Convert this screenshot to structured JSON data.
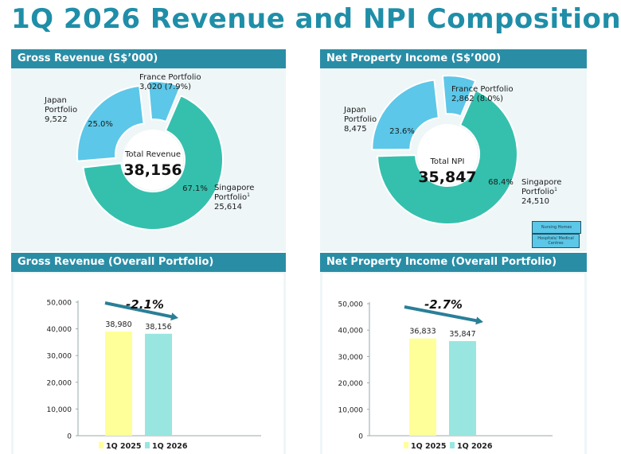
{
  "title": "1Q 2026 Revenue and NPI Composition",
  "panels": {
    "gross_revenue": "Gross Revenue (S$’000)",
    "npi": "Net Property Income (S$’000)",
    "gross_revenue_overall": "Gross Revenue (Overall Portfolio)",
    "npi_overall": "Net Property Income (Overall Portfolio)"
  },
  "legend_boxes": {
    "nursing_homes": "Nursing Homes",
    "hospitals": "Hospitals/ Medical Centres"
  },
  "colors": {
    "header": "#2a8da6",
    "title": "#1f8ea8",
    "singapore": "#35c0ae",
    "japan": "#5cc7e8",
    "france": "#5cc7e8",
    "bar_1q2025": "#ffff99",
    "bar_1q2026": "#99e6e0",
    "arrow": "#2a7f97"
  },
  "chart_data": [
    {
      "type": "pie",
      "donut": true,
      "center_label": "Total Revenue",
      "center_value": "38,156",
      "slices": [
        {
          "name_lines": [
            "Singapore",
            "Portfolio"
          ],
          "superscript": "1",
          "value": 25614,
          "value_label": "25,614",
          "percent_label": "67.1%"
        },
        {
          "name_lines": [
            "Japan",
            "Portfolio"
          ],
          "value": 9522,
          "value_label": "9,522",
          "percent_label": "25.0%"
        },
        {
          "name_lines": [
            "France Portfolio"
          ],
          "value": 3020,
          "value_label": "3,020 (7.9%)"
        }
      ]
    },
    {
      "type": "pie",
      "donut": true,
      "center_label": "Total NPI",
      "center_value": "35,847",
      "slices": [
        {
          "name_lines": [
            "Singapore",
            "Portfolio"
          ],
          "superscript": "1",
          "value": 24510,
          "value_label": "24,510",
          "percent_label": "68.4%"
        },
        {
          "name_lines": [
            "Japan",
            "Portfolio"
          ],
          "value": 8475,
          "value_label": "8,475",
          "percent_label": "23.6%"
        },
        {
          "name_lines": [
            "France Portfolio"
          ],
          "value": 2862,
          "value_label": "2,862 (8.0%)"
        }
      ]
    },
    {
      "type": "bar",
      "categories": [
        "1Q 2025",
        "1Q 2026"
      ],
      "values": [
        38980,
        38156
      ],
      "value_labels": [
        "38,980",
        "38,156"
      ],
      "ylim": [
        0,
        50000
      ],
      "yticks": [
        0,
        10000,
        20000,
        30000,
        40000,
        50000
      ],
      "ytick_labels": [
        "0",
        "10,000",
        "20,000",
        "30,000",
        "40,000",
        "50,000"
      ],
      "change_label": "-2.1%",
      "legend": [
        "1Q 2025",
        "1Q 2026"
      ]
    },
    {
      "type": "bar",
      "categories": [
        "1Q 2025",
        "1Q 2026"
      ],
      "values": [
        36833,
        35847
      ],
      "value_labels": [
        "36,833",
        "35,847"
      ],
      "ylim": [
        0,
        50000
      ],
      "yticks": [
        0,
        10000,
        20000,
        30000,
        40000,
        50000
      ],
      "ytick_labels": [
        "0",
        "10,000",
        "20,000",
        "30,000",
        "40,000",
        "50,000"
      ],
      "change_label": "-2.7%",
      "legend": [
        "1Q 2025",
        "1Q 2026"
      ]
    }
  ]
}
